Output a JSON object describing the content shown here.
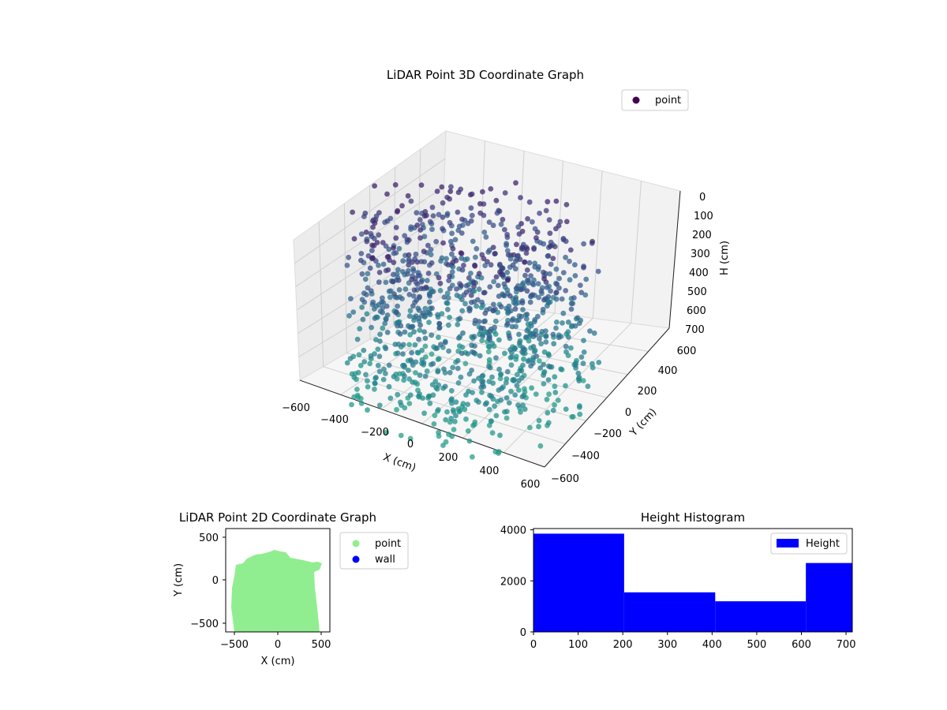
{
  "chart_data": [
    {
      "type": "scatter",
      "projection": "3d",
      "title": "LiDAR Point 3D Coordinate Graph",
      "xlabel": "X (cm)",
      "ylabel": "Y (cm)",
      "zlabel": "H (cm)",
      "xlim": [
        -600,
        600
      ],
      "ylim": [
        -600,
        600
      ],
      "zlim": [
        700,
        0
      ],
      "z_inverted": true,
      "xticks": [
        "−600",
        "−400",
        "−200",
        "0",
        "200",
        "400",
        "600"
      ],
      "yticks": [
        "−600",
        "−400",
        "−200",
        "0",
        "200",
        "400",
        "600"
      ],
      "zticks": [
        "0",
        "100",
        "200",
        "300",
        "400",
        "500",
        "600",
        "700"
      ],
      "legend": [
        {
          "label": "point",
          "color": "#440154"
        }
      ],
      "legend_position": "top-right",
      "colormap": "viridis",
      "grid": true
    },
    {
      "type": "scatter",
      "title": "LiDAR Point 2D Coordinate Graph",
      "xlabel": "X (cm)",
      "ylabel": "Y (cm)",
      "xlim": [
        -600,
        600
      ],
      "ylim": [
        -600,
        600
      ],
      "xticks": [
        "−500",
        "0",
        "500"
      ],
      "yticks": [
        "500",
        "0",
        "−500"
      ],
      "series": [
        {
          "name": "point",
          "color": "#90ee90"
        },
        {
          "name": "wall",
          "color": "#0000ff"
        }
      ],
      "legend_position": "outside-right"
    },
    {
      "type": "bar",
      "title": "Height Histogram",
      "bins": [
        [
          0,
          203
        ],
        [
          203,
          407
        ],
        [
          407,
          610
        ],
        [
          610,
          714
        ]
      ],
      "values": [
        3850,
        1550,
        1200,
        2700
      ],
      "xlim": [
        0,
        714
      ],
      "ylim": [
        0,
        4050
      ],
      "xticks": [
        "0",
        "100",
        "200",
        "300",
        "400",
        "500",
        "600",
        "700"
      ],
      "yticks": [
        "0",
        "2000",
        "4000"
      ],
      "series": [
        {
          "name": "Height",
          "color": "#0000ff"
        }
      ],
      "legend_position": "top-right"
    }
  ]
}
